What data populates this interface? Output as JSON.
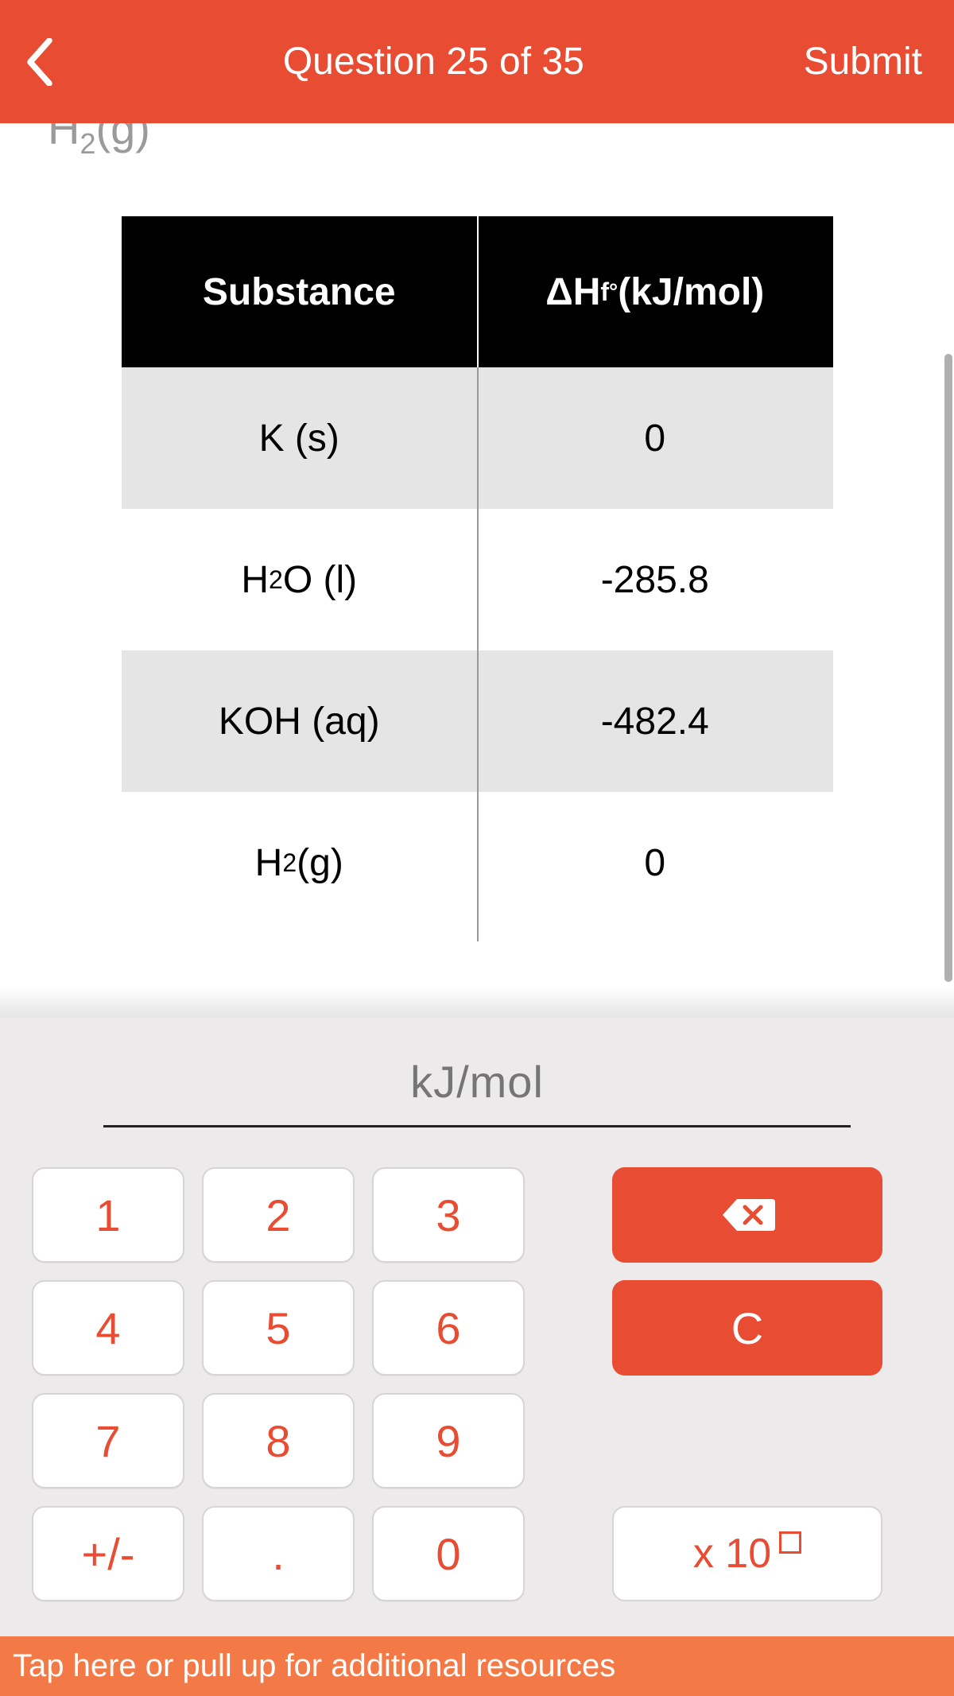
{
  "header": {
    "title": "Question 25 of 35",
    "submit": "Submit",
    "accent_color": "#e84c32"
  },
  "content": {
    "cutoff_fragment_html": "H<sub>2</sub>(g)",
    "table": {
      "type": "table",
      "background_color": "#ffffff",
      "header_bg": "#000000",
      "header_text_color": "#ffffff",
      "row_odd_bg": "#e5e5e5",
      "row_even_bg": "#ffffff",
      "columns": [
        "Substance",
        "ΔH_f° (kJ/mol)"
      ],
      "col0_header_html": "Substance",
      "col1_header_html": "ΔH<sub>f</sub><sup>°</sup> (kJ/mol)",
      "rows": [
        {
          "substance_html": "K (s)",
          "value": "0"
        },
        {
          "substance_html": "H<sub>2</sub>O (l)",
          "value": "-285.8"
        },
        {
          "substance_html": "KOH (aq)",
          "value": "-482.4"
        },
        {
          "substance_html": "H<sub>2</sub> (g)",
          "value": "0"
        }
      ]
    }
  },
  "input": {
    "placeholder": "kJ/mol",
    "value": ""
  },
  "keypad": {
    "digits": [
      "1",
      "2",
      "3",
      "4",
      "5",
      "6",
      "7",
      "8",
      "9",
      "+/-",
      ".",
      "0"
    ],
    "clear_label": "C",
    "x10_label": "x 10",
    "button_text_color": "#e84c32",
    "button_bg": "#ffffff",
    "action_bg": "#e84c32",
    "action_text_color": "#ffffff"
  },
  "footer": {
    "text": "Tap here or pull up for additional resources",
    "bg": "#f37a47"
  }
}
